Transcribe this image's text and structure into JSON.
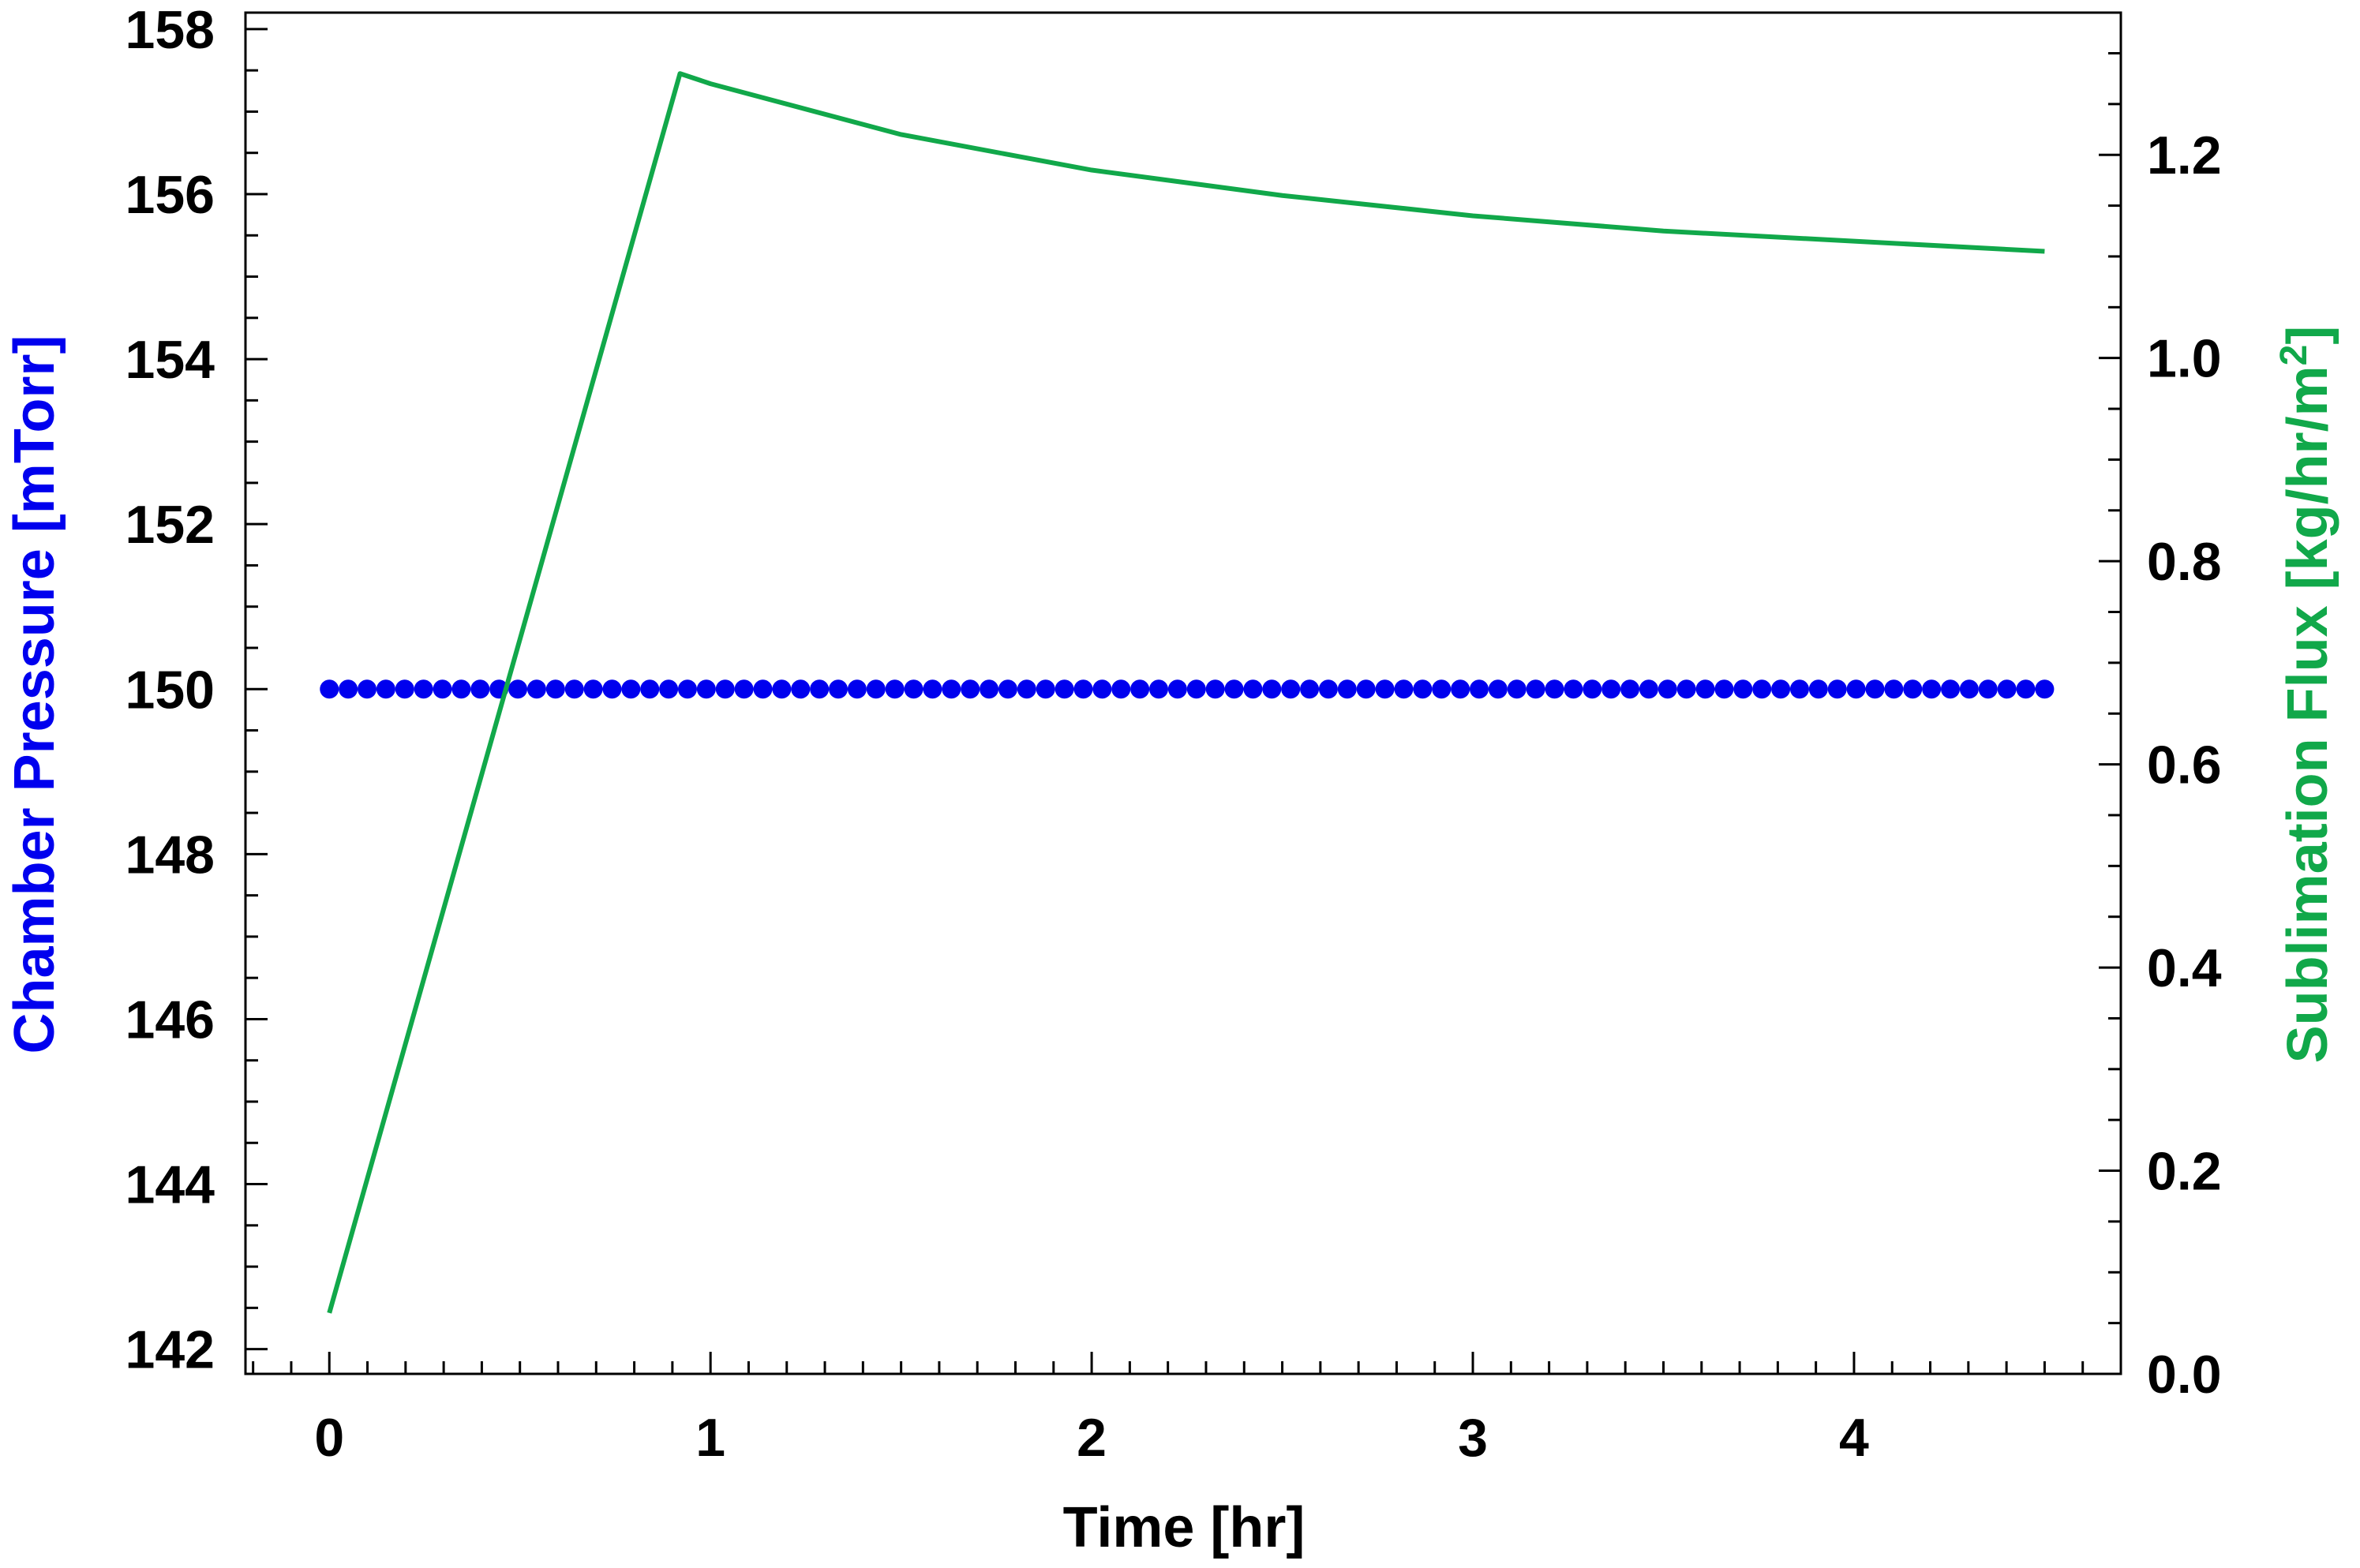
{
  "chart_data": {
    "type": "line",
    "title": "",
    "xlabel": "Time [hr]",
    "ylabel_left": "Chamber Pressure [mTorr]",
    "ylabel_right_text": "Sublimation Flux [kg/hr/m",
    "ylabel_right_sup": "2",
    "ylabel_right_close": "]",
    "xlim": [
      -0.22,
      4.7
    ],
    "ylim_left": [
      141.7,
      158.2
    ],
    "ylim_right": [
      0.0,
      1.34
    ],
    "x_ticks": [
      0,
      1,
      2,
      3,
      4
    ],
    "y_left_ticks": [
      142,
      144,
      146,
      148,
      150,
      152,
      154,
      156,
      158
    ],
    "y_right_ticks": [
      0.0,
      0.2,
      0.4,
      0.6,
      0.8,
      1.0,
      1.2
    ],
    "y_right_tick_labels": [
      "0.0",
      "0.2",
      "0.4",
      "0.6",
      "0.8",
      "1.0",
      "1.2"
    ],
    "grid": false,
    "colors": {
      "pressure": "#0000ee",
      "flux": "#11a84a",
      "axes": "#000000"
    },
    "series": [
      {
        "axis": "left",
        "style": "markers",
        "x_start": 0.0,
        "x_end": 4.5,
        "count": 92,
        "value": 150
      },
      {
        "axis": "right",
        "style": "line",
        "x": [
          0.0,
          0.92,
          1.0,
          1.5,
          2.0,
          2.5,
          3.0,
          3.5,
          4.0,
          4.5
        ],
        "y": [
          0.06,
          1.28,
          1.27,
          1.22,
          1.185,
          1.16,
          1.14,
          1.125,
          1.115,
          1.105
        ]
      }
    ]
  }
}
